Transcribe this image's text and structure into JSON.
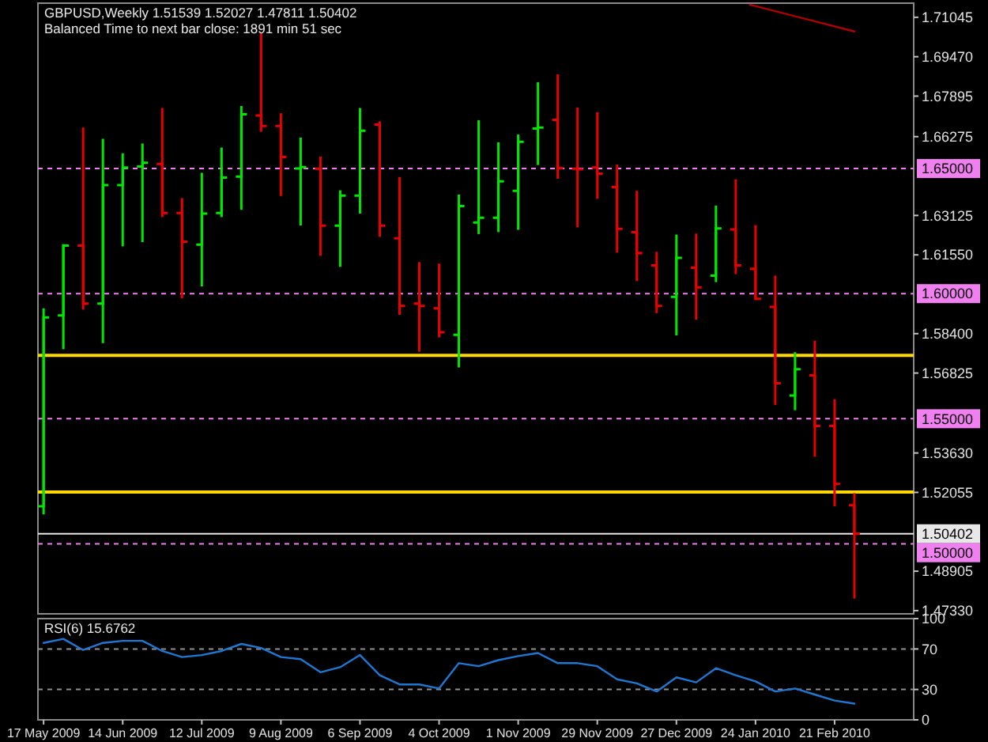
{
  "chart_data": [
    {
      "type": "candlestick",
      "title": "GBPUSD,Weekly  1.51539 1.52027 1.47811 1.50402",
      "subtitle": "Balanced Time to next bar close: 1891 min 51 sec",
      "x": [
        "2009-05-17",
        "2009-05-24",
        "2009-05-31",
        "2009-06-07",
        "2009-06-14",
        "2009-06-21",
        "2009-06-28",
        "2009-07-05",
        "2009-07-12",
        "2009-07-19",
        "2009-07-26",
        "2009-08-02",
        "2009-08-09",
        "2009-08-16",
        "2009-08-23",
        "2009-08-30",
        "2009-09-06",
        "2009-09-13",
        "2009-09-20",
        "2009-09-27",
        "2009-10-04",
        "2009-10-11",
        "2009-10-18",
        "2009-10-25",
        "2009-11-01",
        "2009-11-08",
        "2009-11-15",
        "2009-11-22",
        "2009-11-29",
        "2009-12-06",
        "2009-12-13",
        "2009-12-20",
        "2009-12-27",
        "2010-01-03",
        "2010-01-10",
        "2010-01-17",
        "2010-01-24",
        "2010-01-31",
        "2010-02-07",
        "2010-02-14",
        "2010-02-21",
        "2010-02-28"
      ],
      "ohlc": [
        [
          1.515,
          1.5941,
          1.5118,
          1.5905
        ],
        [
          1.5913,
          1.6198,
          1.5778,
          1.6192
        ],
        [
          1.6192,
          1.6664,
          1.5936,
          1.596
        ],
        [
          1.596,
          1.6619,
          1.5802,
          1.6434
        ],
        [
          1.6434,
          1.6561,
          1.6189,
          1.6504
        ],
        [
          1.6508,
          1.66,
          1.6206,
          1.6523
        ],
        [
          1.6518,
          1.6742,
          1.6306,
          1.6322
        ],
        [
          1.6322,
          1.6382,
          1.5981,
          1.6208
        ],
        [
          1.6196,
          1.6483,
          1.6029,
          1.632
        ],
        [
          1.6322,
          1.6584,
          1.6306,
          1.6464
        ],
        [
          1.6468,
          1.675,
          1.6335,
          1.6717
        ],
        [
          1.6712,
          1.7041,
          1.6647,
          1.667
        ],
        [
          1.667,
          1.6721,
          1.639,
          1.6546
        ],
        [
          1.65,
          1.6624,
          1.6272,
          1.6506
        ],
        [
          1.6499,
          1.6548,
          1.6151,
          1.6272
        ],
        [
          1.6272,
          1.6413,
          1.6107,
          1.6392
        ],
        [
          1.6392,
          1.6742,
          1.632,
          1.6651
        ],
        [
          1.6676,
          1.6689,
          1.6227,
          1.6272
        ],
        [
          1.6221,
          1.6466,
          1.5915,
          1.5951
        ],
        [
          1.596,
          1.6126,
          1.5768,
          1.5951
        ],
        [
          1.5941,
          1.612,
          1.5825,
          1.5846
        ],
        [
          1.5835,
          1.6396,
          1.5705,
          1.635
        ],
        [
          1.6284,
          1.6693,
          1.6238,
          1.6303
        ],
        [
          1.6303,
          1.6605,
          1.6246,
          1.6449
        ],
        [
          1.6411,
          1.6636,
          1.6255,
          1.6607
        ],
        [
          1.666,
          1.6845,
          1.6514,
          1.6664
        ],
        [
          1.6695,
          1.6877,
          1.6459,
          1.6502
        ],
        [
          1.6499,
          1.6744,
          1.6265,
          1.6497
        ],
        [
          1.6504,
          1.6725,
          1.6379,
          1.648
        ],
        [
          1.6426,
          1.6516,
          1.6164,
          1.6259
        ],
        [
          1.6246,
          1.6411,
          1.605,
          1.6162
        ],
        [
          1.6113,
          1.6167,
          1.5922,
          1.5951
        ],
        [
          1.5987,
          1.6236,
          1.5833,
          1.6143
        ],
        [
          1.6103,
          1.624,
          1.5896,
          1.6025
        ],
        [
          1.6072,
          1.6352,
          1.6046,
          1.6261
        ],
        [
          1.6257,
          1.6457,
          1.6078,
          1.6113
        ],
        [
          1.6099,
          1.6274,
          1.5977,
          1.5979
        ],
        [
          1.5947,
          1.6072,
          1.5555,
          1.5642
        ],
        [
          1.5593,
          1.5766,
          1.5534,
          1.5698
        ],
        [
          1.5673,
          1.5812,
          1.5348,
          1.5471
        ],
        [
          1.5471,
          1.5578,
          1.515,
          1.5239
        ],
        [
          1.51539,
          1.52027,
          1.47811,
          1.50402
        ]
      ],
      "colors": [
        "#00e600",
        "#00e600",
        "#e60000",
        "#00e600",
        "#00e600",
        "#00e600",
        "#e60000",
        "#e60000",
        "#00e600",
        "#00e600",
        "#00e600",
        "#e60000",
        "#e60000",
        "#00e600",
        "#e60000",
        "#00e600",
        "#00e600",
        "#e60000",
        "#e60000",
        "#e60000",
        "#e60000",
        "#00e600",
        "#00e600",
        "#00e600",
        "#00e600",
        "#00e600",
        "#e60000",
        "#e60000",
        "#e60000",
        "#e60000",
        "#e60000",
        "#e60000",
        "#00e600",
        "#e60000",
        "#00e600",
        "#e60000",
        "#e60000",
        "#e60000",
        "#00e600",
        "#e60000",
        "#e60000",
        "#e60000"
      ],
      "series": [
        {
          "type": "line",
          "x": [
            "2010-01-22",
            "2010-02-28"
          ],
          "values": [
            1.7155,
            1.7048
          ],
          "color": "#b00000"
        }
      ],
      "xlim": [
        "2009-05-15",
        "2010-03-21"
      ],
      "ylim": [
        1.472,
        1.7161
      ],
      "yticks": [
        {
          "value": 1.71045,
          "label": "1.71045"
        },
        {
          "value": 1.6947,
          "label": "1.69470"
        },
        {
          "value": 1.67895,
          "label": "1.67895"
        },
        {
          "value": 1.66275,
          "label": "1.66275"
        },
        {
          "value": 1.63125,
          "label": "1.63125"
        },
        {
          "value": 1.6155,
          "label": "1.61550"
        },
        {
          "value": 1.584,
          "label": "1.58400"
        },
        {
          "value": 1.56825,
          "label": "1.56825"
        },
        {
          "value": 1.5363,
          "label": "1.53630"
        },
        {
          "value": 1.52055,
          "label": "1.52055"
        },
        {
          "value": 1.48905,
          "label": "1.48905"
        },
        {
          "value": 1.4733,
          "label": "1.47330"
        }
      ],
      "tick_labels": "y",
      "ref_lines": [
        {
          "axis": "y",
          "value": 1.65,
          "label": "1.65000",
          "color": "#f080f0",
          "line_style": "dashed"
        },
        {
          "axis": "y",
          "value": 1.6,
          "label": "1.60000",
          "color": "#f080f0",
          "line_style": "dashed"
        },
        {
          "axis": "y",
          "value": 1.55,
          "label": "1.55000",
          "color": "#f080f0",
          "line_style": "dashed"
        },
        {
          "axis": "y",
          "value": 1.5,
          "label": "1.50000",
          "color": "#f080f0",
          "line_style": "dashed"
        },
        {
          "axis": "y",
          "value": 1.5753,
          "color": "#ffd700",
          "line_style": "solid"
        },
        {
          "axis": "y",
          "value": 1.5207,
          "color": "#ffd700",
          "line_style": "solid"
        },
        {
          "axis": "y",
          "value": 1.50402,
          "label": "1.50402",
          "color": "#e8e8e8",
          "line_style": "solid"
        }
      ]
    },
    {
      "type": "line",
      "title": "RSI(6) 15.6762",
      "x": [
        "2009-05-17",
        "2009-05-24",
        "2009-05-31",
        "2009-06-07",
        "2009-06-14",
        "2009-06-21",
        "2009-06-28",
        "2009-07-05",
        "2009-07-12",
        "2009-07-19",
        "2009-07-26",
        "2009-08-02",
        "2009-08-09",
        "2009-08-16",
        "2009-08-23",
        "2009-08-30",
        "2009-09-06",
        "2009-09-13",
        "2009-09-20",
        "2009-09-27",
        "2009-10-04",
        "2009-10-11",
        "2009-10-18",
        "2009-10-25",
        "2009-11-01",
        "2009-11-08",
        "2009-11-15",
        "2009-11-22",
        "2009-11-29",
        "2009-12-06",
        "2009-12-13",
        "2009-12-20",
        "2009-12-27",
        "2010-01-03",
        "2010-01-10",
        "2010-01-17",
        "2010-01-24",
        "2010-01-31",
        "2010-02-07",
        "2010-02-14",
        "2010-02-21",
        "2010-02-28"
      ],
      "series": [
        {
          "color": "#1e78d2",
          "values": [
            76,
            80,
            69,
            76,
            78,
            78,
            68,
            62,
            64,
            68,
            75,
            71,
            62,
            60,
            47,
            52,
            64,
            44,
            35,
            35,
            31,
            56,
            53,
            59,
            63,
            66,
            56,
            56,
            53,
            40,
            36,
            28,
            42,
            37,
            51,
            44,
            38,
            28,
            31,
            25,
            19,
            16
          ]
        }
      ],
      "xlim": [
        "2009-05-15",
        "2010-03-21"
      ],
      "ylim": [
        0,
        100
      ],
      "yticks": [
        0,
        30,
        70,
        100
      ],
      "xticks": [
        {
          "value": "2009-05-17",
          "label": "17 May 2009"
        },
        {
          "value": "2009-06-14",
          "label": "14 Jun 2009"
        },
        {
          "value": "2009-07-12",
          "label": "12 Jul 2009"
        },
        {
          "value": "2009-08-09",
          "label": "9 Aug 2009"
        },
        {
          "value": "2009-09-06",
          "label": "6 Sep 2009"
        },
        {
          "value": "2009-10-04",
          "label": "4 Oct 2009"
        },
        {
          "value": "2009-11-01",
          "label": "1 Nov 2009"
        },
        {
          "value": "2009-11-29",
          "label": "29 Nov 2009"
        },
        {
          "value": "2009-12-27",
          "label": "27 Dec 2009"
        },
        {
          "value": "2010-01-24",
          "label": "24 Jan 2010"
        },
        {
          "value": "2010-02-21",
          "label": "21 Feb 2010"
        }
      ],
      "ref_lines": [
        {
          "axis": "y",
          "value": 70,
          "color": "#909090",
          "line_style": "dashed"
        },
        {
          "axis": "y",
          "value": 30,
          "color": "#909090",
          "line_style": "dashed"
        }
      ]
    }
  ]
}
